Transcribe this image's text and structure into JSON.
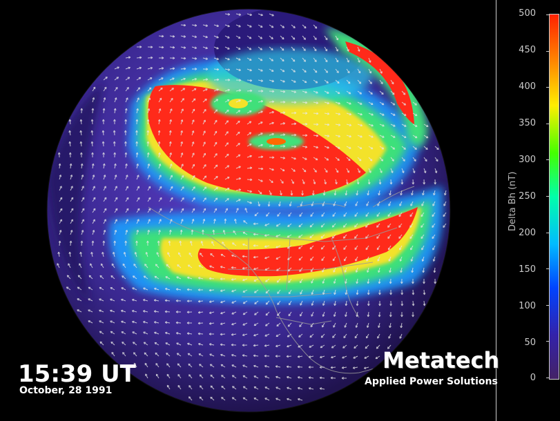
{
  "time_label": "15:39 UT",
  "date_label": "October, 28 1991",
  "brand_name": "Metatech",
  "brand_tagline": "Applied Power Solutions",
  "colorbar": {
    "title": "Delta Bh (nT)",
    "ticks": [
      "500",
      "450",
      "400",
      "350",
      "300",
      "250",
      "200",
      "150",
      "100",
      "50",
      "0"
    ],
    "colors": [
      "#ff2200",
      "#ff8800",
      "#ffee00",
      "#44ff00",
      "#00ffaa",
      "#00bbff",
      "#0044ff",
      "#3322aa",
      "#442266"
    ]
  }
}
